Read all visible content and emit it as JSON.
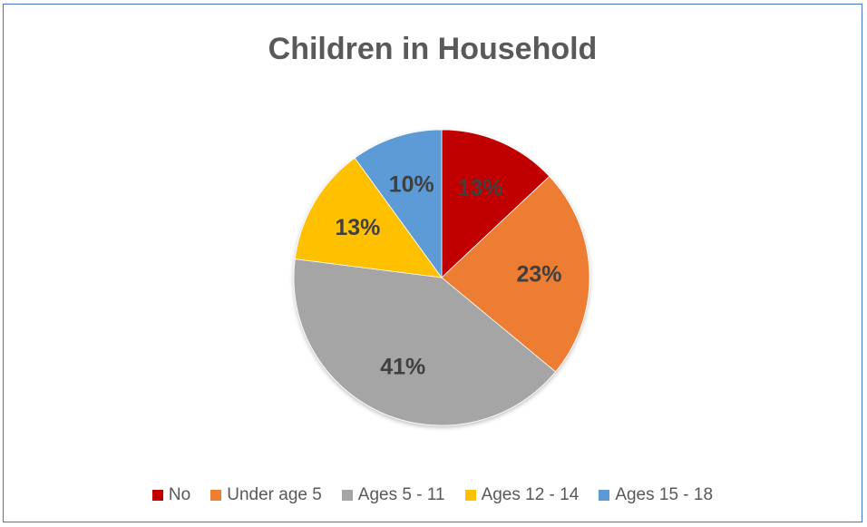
{
  "chart_data": {
    "type": "pie",
    "title": "Children in Household",
    "categories": [
      "No",
      "Under age 5",
      "Ages 5 - 11",
      "Ages 12 - 14",
      "Ages 15 - 18"
    ],
    "values": [
      13,
      23,
      41,
      13,
      10
    ],
    "labels": [
      "13%",
      "23%",
      "41%",
      "13%",
      "10%"
    ],
    "colors": [
      "#c00000",
      "#ed7d31",
      "#a5a5a5",
      "#ffc000",
      "#5b9bd5"
    ],
    "legend_position": "bottom",
    "start_angle": "12 o'clock",
    "direction": "clockwise"
  }
}
